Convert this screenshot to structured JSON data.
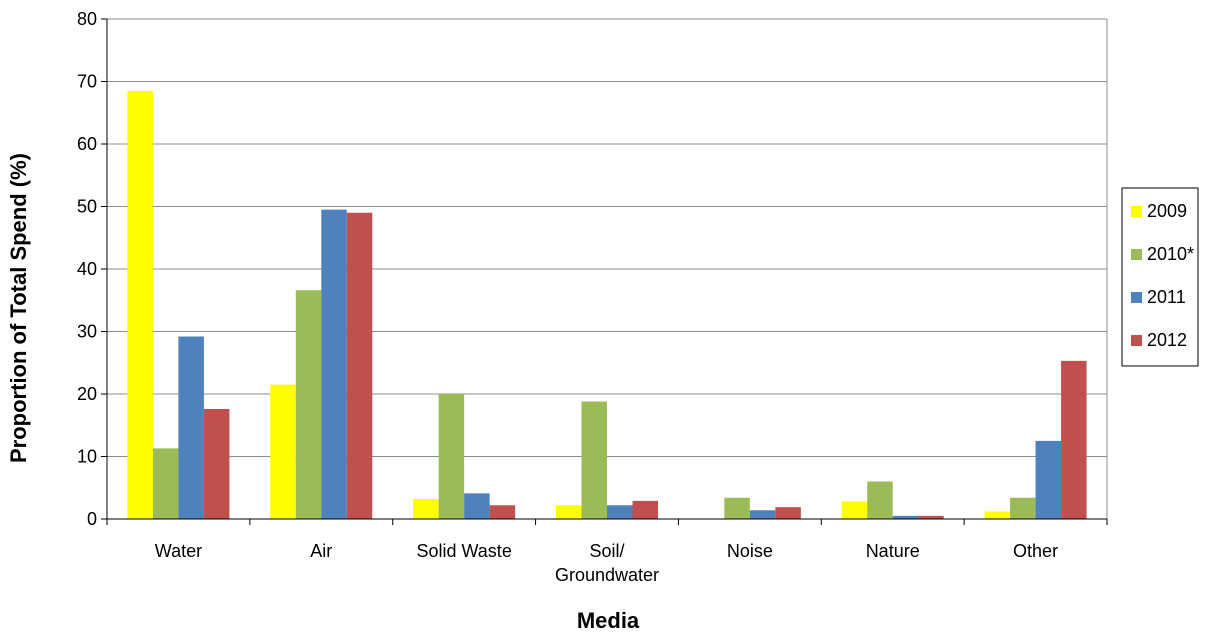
{
  "chart_data": {
    "type": "bar",
    "xlabel": "Media",
    "ylabel": "Proportion of Total Spend (%)",
    "ylim": [
      0,
      80
    ],
    "yticks": [
      "0",
      "10",
      "20",
      "30",
      "40",
      "50",
      "60",
      "70",
      "80"
    ],
    "grid": true,
    "legend_position": "right",
    "categories": [
      [
        "Water"
      ],
      [
        "Air"
      ],
      [
        "Solid Waste"
      ],
      [
        "Soil/",
        "Groundwater"
      ],
      [
        "Noise"
      ],
      [
        "Nature"
      ],
      [
        "Other"
      ]
    ],
    "series": [
      {
        "name": "2009",
        "color": "#ffff00",
        "values": [
          68.5,
          21.5,
          3.2,
          2.2,
          0,
          2.8,
          1.2
        ]
      },
      {
        "name": "2010*",
        "color": "#9bbb59",
        "values": [
          11.3,
          36.6,
          20.0,
          18.8,
          3.4,
          6.0,
          3.4
        ]
      },
      {
        "name": "2011",
        "color": "#4f81bd",
        "values": [
          29.2,
          49.5,
          4.1,
          2.2,
          1.4,
          0.5,
          12.5
        ]
      },
      {
        "name": "2012",
        "color": "#c0504d",
        "values": [
          17.6,
          49.0,
          2.2,
          2.9,
          1.9,
          0.5,
          25.3
        ]
      }
    ]
  }
}
